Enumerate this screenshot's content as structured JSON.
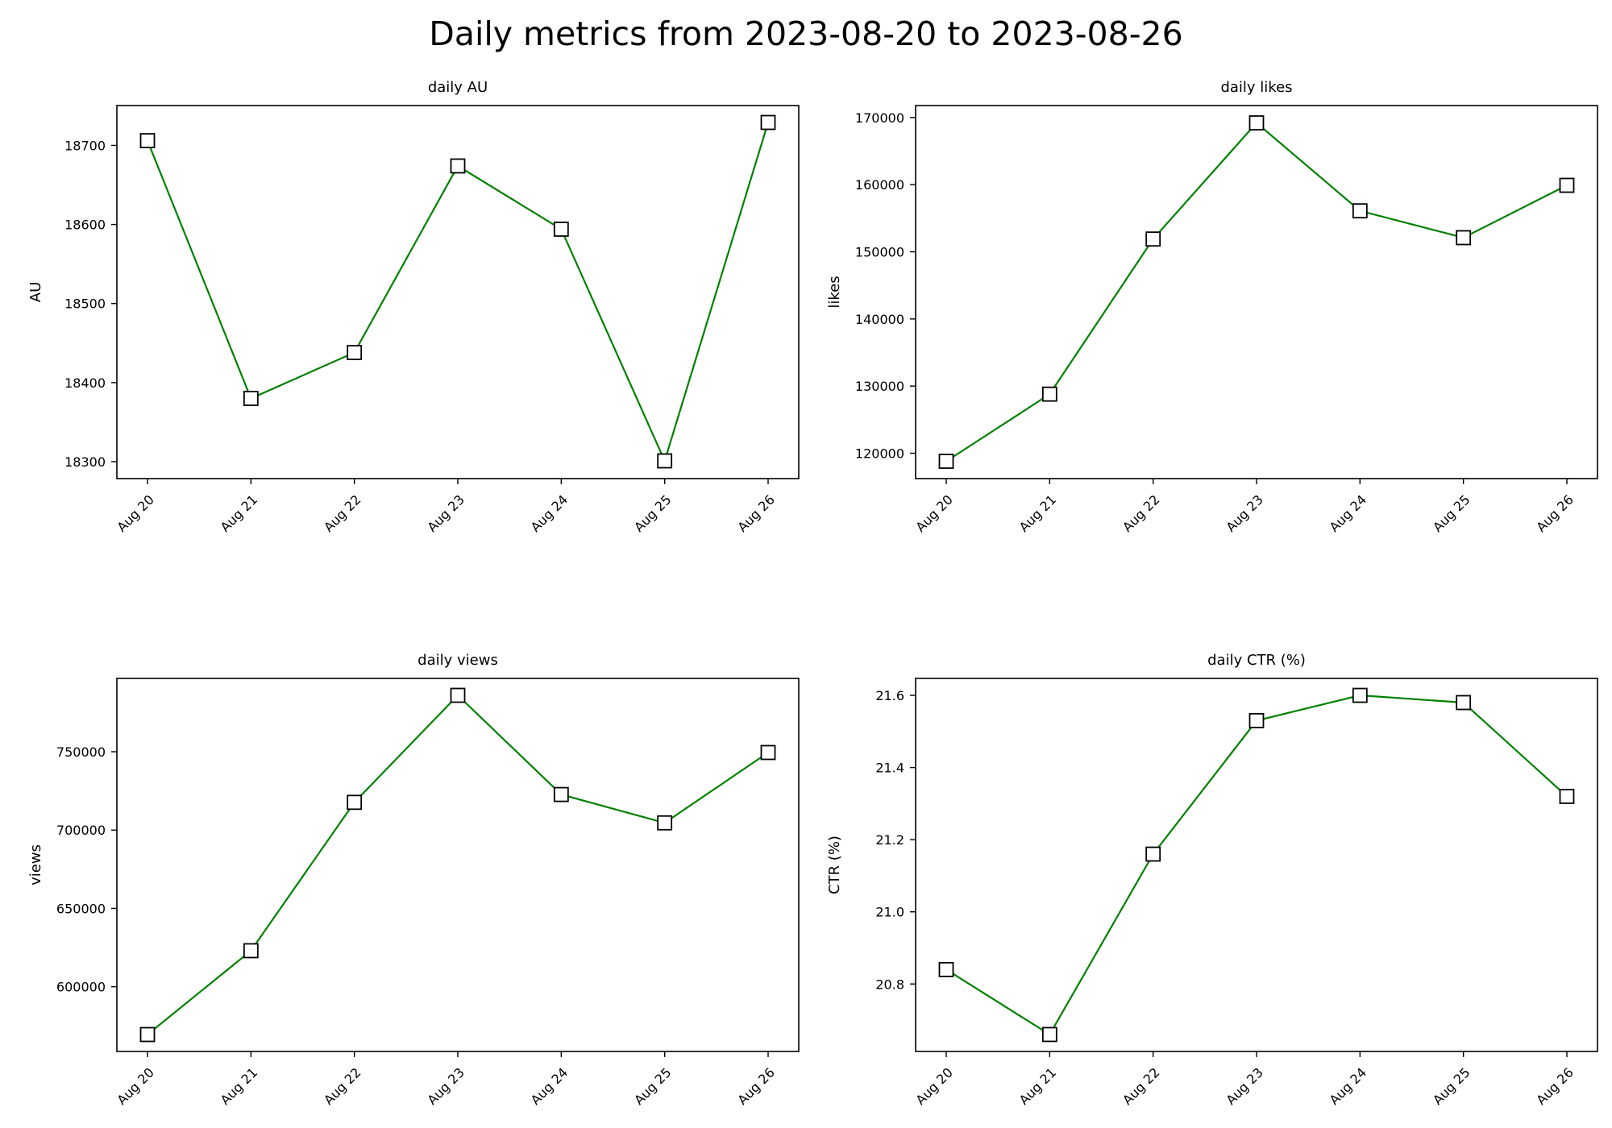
{
  "title": "Daily metrics from 2023-08-20 to 2023-08-26",
  "line_color": "#008000",
  "marker_edge_color": "#000000",
  "marker_face_color": "#ffffff",
  "chart_data": [
    {
      "type": "line",
      "title": "daily AU",
      "xlabel": "",
      "ylabel": "AU",
      "categories": [
        "Aug 20",
        "Aug 21",
        "Aug 22",
        "Aug 23",
        "Aug 24",
        "Aug 25",
        "Aug 26"
      ],
      "values": [
        18706,
        18380,
        18438,
        18674,
        18594,
        18301,
        18729
      ],
      "yticks": [
        18300,
        18400,
        18500,
        18600,
        18700
      ],
      "ylim": [
        18278.6,
        18750.4
      ],
      "grid": false,
      "marker": "square"
    },
    {
      "type": "line",
      "title": "daily likes",
      "xlabel": "",
      "ylabel": "likes",
      "categories": [
        "Aug 20",
        "Aug 21",
        "Aug 22",
        "Aug 23",
        "Aug 24",
        "Aug 25",
        "Aug 26"
      ],
      "values": [
        118800,
        128800,
        151900,
        169200,
        156100,
        152100,
        159900
      ],
      "yticks": [
        120000,
        130000,
        140000,
        150000,
        160000,
        170000
      ],
      "ylim": [
        116220,
        171780
      ],
      "grid": false,
      "marker": "square"
    },
    {
      "type": "line",
      "title": "daily views",
      "xlabel": "",
      "ylabel": "views",
      "categories": [
        "Aug 20",
        "Aug 21",
        "Aug 22",
        "Aug 23",
        "Aug 24",
        "Aug 25",
        "Aug 26"
      ],
      "values": [
        569500,
        623000,
        717700,
        786000,
        722700,
        704600,
        749500
      ],
      "yticks": [
        600000,
        650000,
        700000,
        750000
      ],
      "ylim": [
        558700,
        796800
      ],
      "grid": false,
      "marker": "square"
    },
    {
      "type": "line",
      "title": "daily CTR (%)",
      "xlabel": "",
      "ylabel": "CTR (%)",
      "categories": [
        "Aug 20",
        "Aug 21",
        "Aug 22",
        "Aug 23",
        "Aug 24",
        "Aug 25",
        "Aug 26"
      ],
      "values": [
        20.84,
        20.66,
        21.16,
        21.53,
        21.6,
        21.58,
        21.32
      ],
      "yticks": [
        20.8,
        21.0,
        21.2,
        21.4,
        21.6
      ],
      "yticklabels": [
        "20.8",
        "21.0",
        "21.2",
        "21.4",
        "21.6"
      ],
      "ylim": [
        20.613,
        21.647
      ],
      "grid": false,
      "marker": "square"
    }
  ]
}
